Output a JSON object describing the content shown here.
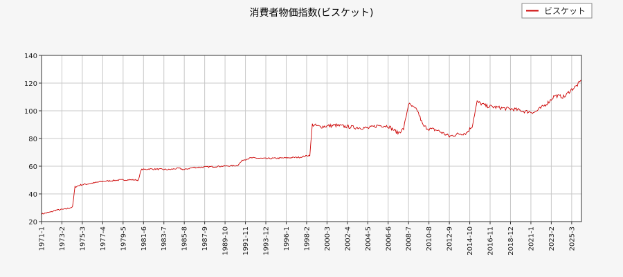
{
  "chart_data": {
    "type": "line",
    "title": "消費者物価指数(ビスケット)",
    "xlabel": "",
    "ylabel": "",
    "ylim": [
      20,
      140
    ],
    "yticks": [
      20,
      40,
      60,
      80,
      100,
      120,
      140
    ],
    "xlim": [
      "1971-01",
      "2026-03"
    ],
    "xticks": [
      "1971-1",
      "1973-2",
      "1975-3",
      "1977-4",
      "1979-5",
      "1981-6",
      "1983-7",
      "1985-8",
      "1987-9",
      "1989-10",
      "1991-11",
      "1993-12",
      "1996-1",
      "1998-2",
      "2000-3",
      "2002-4",
      "2004-5",
      "2006-6",
      "2008-7",
      "2010-8",
      "2012-9",
      "2014-10",
      "2016-11",
      "2018-12",
      "2021-1",
      "2023-2",
      "2025-3"
    ],
    "grid": true,
    "legend_position": "top-right",
    "series": [
      {
        "name": "ビスケット",
        "color": "#cc0000",
        "points": [
          [
            "1971-01",
            25.5
          ],
          [
            "1972-01",
            27.0
          ],
          [
            "1972-06",
            28.2
          ],
          [
            "1973-06",
            29.0
          ],
          [
            "1974-03",
            30.5
          ],
          [
            "1974-06",
            45.0
          ],
          [
            "1975-01",
            46.5
          ],
          [
            "1976-01",
            47.5
          ],
          [
            "1977-01",
            48.8
          ],
          [
            "1978-01",
            49.5
          ],
          [
            "1979-01",
            50.0
          ],
          [
            "1980-01",
            50.2
          ],
          [
            "1980-12",
            50.0
          ],
          [
            "1981-03",
            57.5
          ],
          [
            "1982-01",
            58.0
          ],
          [
            "1983-01",
            57.8
          ],
          [
            "1984-01",
            57.5
          ],
          [
            "1985-01",
            58.5
          ],
          [
            "1985-08",
            57.5
          ],
          [
            "1986-06",
            59.0
          ],
          [
            "1988-01",
            59.5
          ],
          [
            "1989-06",
            60.0
          ],
          [
            "1991-01",
            60.5
          ],
          [
            "1991-08",
            64.5
          ],
          [
            "1992-06",
            66.0
          ],
          [
            "1994-01",
            65.5
          ],
          [
            "1996-01",
            66.0
          ],
          [
            "1997-06",
            66.5
          ],
          [
            "1998-06",
            68.0
          ],
          [
            "1998-09",
            90.0
          ],
          [
            "1999-06",
            88.5
          ],
          [
            "2001-01",
            89.5
          ],
          [
            "2003-01",
            88.0
          ],
          [
            "2004-06",
            87.5
          ],
          [
            "2005-06",
            89.5
          ],
          [
            "2006-06",
            89.0
          ],
          [
            "2007-06",
            84.0
          ],
          [
            "2008-01",
            87.0
          ],
          [
            "2008-07",
            105.0
          ],
          [
            "2009-06",
            100.0
          ],
          [
            "2010-01",
            89.0
          ],
          [
            "2010-08",
            87.0
          ],
          [
            "2011-06",
            86.0
          ],
          [
            "2012-09",
            81.5
          ],
          [
            "2013-06",
            83.0
          ],
          [
            "2014-06",
            84.0
          ],
          [
            "2015-01",
            89.0
          ],
          [
            "2015-07",
            106.5
          ],
          [
            "2016-06",
            103.5
          ],
          [
            "2018-01",
            102.0
          ],
          [
            "2019-06",
            101.0
          ],
          [
            "2020-06",
            99.5
          ],
          [
            "2021-06",
            99.0
          ],
          [
            "2022-06",
            104.0
          ],
          [
            "2022-12",
            107.0
          ],
          [
            "2023-06",
            111.0
          ],
          [
            "2024-06",
            110.0
          ],
          [
            "2025-01",
            114.5
          ],
          [
            "2025-09",
            118.0
          ],
          [
            "2026-03",
            122.0
          ]
        ]
      }
    ]
  }
}
